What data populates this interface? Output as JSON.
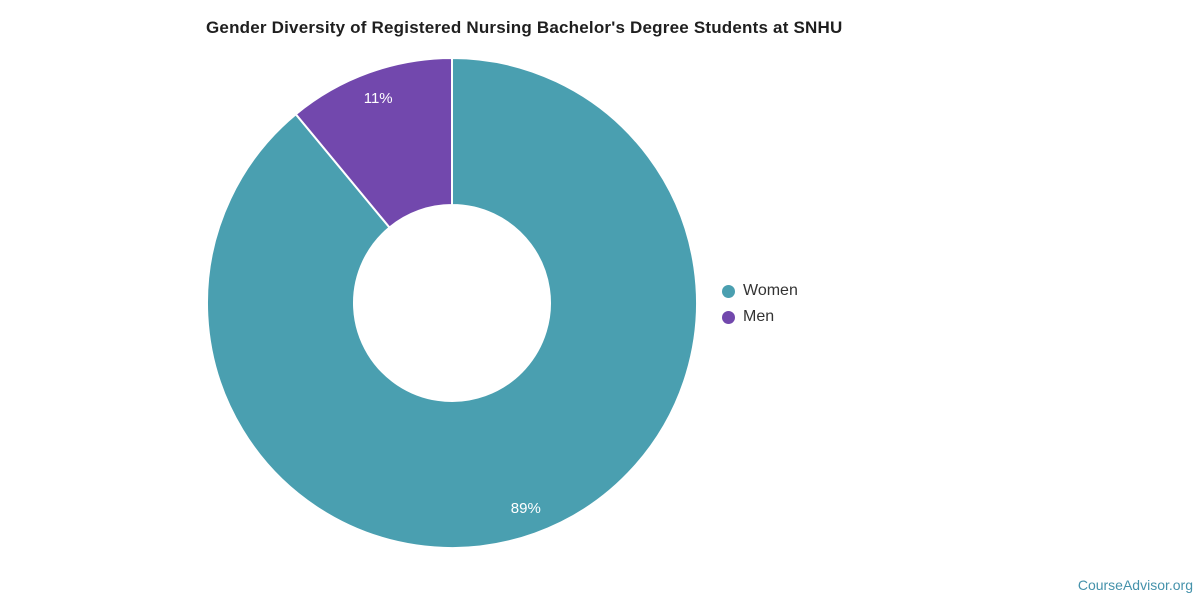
{
  "title": "Gender Diversity of Registered Nursing Bachelor's Degree Students at SNHU",
  "watermark": "CourseAdvisor.org",
  "colors": {
    "title_text": "#1f1f1f",
    "legend_text": "#333333",
    "slice_label_text": "#ffffff",
    "watermark_text": "#4592AB",
    "background": "#ffffff",
    "women": "#4A9FB0",
    "men": "#7248AD"
  },
  "legend": {
    "position": "right",
    "items": [
      {
        "label": "Women",
        "color": "#4A9FB0"
      },
      {
        "label": "Men",
        "color": "#7248AD"
      }
    ]
  },
  "chart_data": {
    "type": "pie",
    "subtype": "donut",
    "title": "Gender Diversity of Registered Nursing Bachelor's Degree Students at SNHU",
    "categories": [
      "Women",
      "Men"
    ],
    "values": [
      89,
      11
    ],
    "unit": "%",
    "slice_labels": [
      "89%",
      "11%"
    ],
    "slice_colors": [
      "#4A9FB0",
      "#7248AD"
    ],
    "start_angle_deg": 0,
    "direction": "clockwise",
    "inner_radius_ratio": 0.4,
    "legend_position": "right",
    "grid": false
  }
}
